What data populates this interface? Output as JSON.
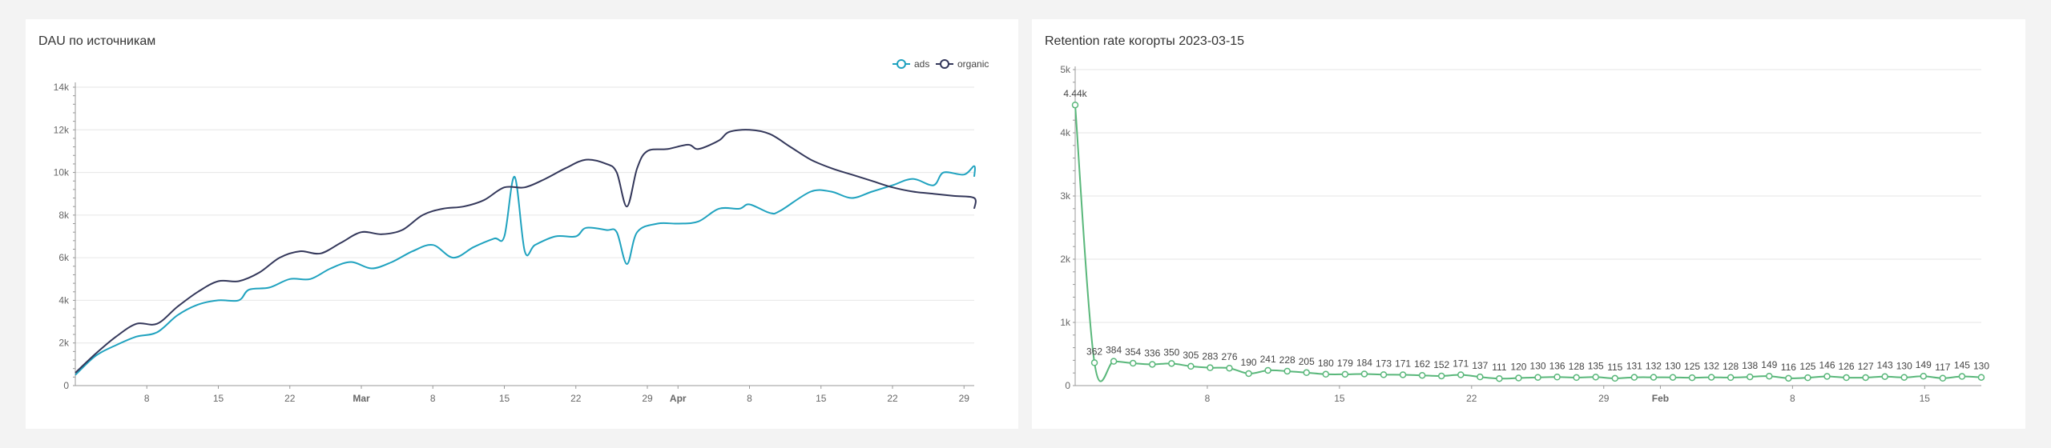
{
  "colors": {
    "ads": "#1fa2bf",
    "organic": "#33375a",
    "retention": "#59b77a",
    "grid": "#e6e6e6",
    "axis": "#999999"
  },
  "left": {
    "title": "DAU по источникам",
    "legend": [
      "ads",
      "organic"
    ],
    "chart_data": {
      "type": "line",
      "title": "DAU по источникам",
      "xlabel": "",
      "ylabel": "",
      "ylim": [
        0,
        14000
      ],
      "y_ticks": [
        "0",
        "2k",
        "4k",
        "6k",
        "8k",
        "10k",
        "12k",
        "14k"
      ],
      "x_ticks": [
        "8",
        "15",
        "22",
        "Mar",
        "8",
        "15",
        "22",
        "29",
        "Apr",
        "8",
        "15",
        "22",
        "29"
      ],
      "x_start": "2023-02-01",
      "x_end": "2023-04-30",
      "legend_position": "top-right",
      "grid": true,
      "series": [
        {
          "name": "ads",
          "points": [
            [
              "2023-02-01",
              500
            ],
            [
              "2023-02-03",
              1400
            ],
            [
              "2023-02-05",
              1900
            ],
            [
              "2023-02-07",
              2300
            ],
            [
              "2023-02-09",
              2500
            ],
            [
              "2023-02-11",
              3300
            ],
            [
              "2023-02-13",
              3800
            ],
            [
              "2023-02-15",
              4000
            ],
            [
              "2023-02-17",
              4000
            ],
            [
              "2023-02-18",
              4500
            ],
            [
              "2023-02-20",
              4600
            ],
            [
              "2023-02-22",
              5000
            ],
            [
              "2023-02-24",
              5000
            ],
            [
              "2023-02-26",
              5500
            ],
            [
              "2023-02-28",
              5800
            ],
            [
              "2023-03-02",
              5500
            ],
            [
              "2023-03-04",
              5800
            ],
            [
              "2023-03-06",
              6300
            ],
            [
              "2023-03-08",
              6600
            ],
            [
              "2023-03-10",
              6000
            ],
            [
              "2023-03-12",
              6500
            ],
            [
              "2023-03-14",
              6900
            ],
            [
              "2023-03-15",
              7000
            ],
            [
              "2023-03-16",
              9800
            ],
            [
              "2023-03-17",
              6300
            ],
            [
              "2023-03-18",
              6600
            ],
            [
              "2023-03-20",
              7000
            ],
            [
              "2023-03-22",
              7000
            ],
            [
              "2023-03-23",
              7400
            ],
            [
              "2023-03-25",
              7300
            ],
            [
              "2023-03-26",
              7200
            ],
            [
              "2023-03-27",
              5700
            ],
            [
              "2023-03-28",
              7200
            ],
            [
              "2023-03-30",
              7600
            ],
            [
              "2023-04-01",
              7600
            ],
            [
              "2023-04-03",
              7700
            ],
            [
              "2023-04-05",
              8300
            ],
            [
              "2023-04-07",
              8300
            ],
            [
              "2023-04-08",
              8500
            ],
            [
              "2023-04-10",
              8100
            ],
            [
              "2023-04-11",
              8200
            ],
            [
              "2023-04-14",
              9100
            ],
            [
              "2023-04-16",
              9100
            ],
            [
              "2023-04-18",
              8800
            ],
            [
              "2023-04-20",
              9100
            ],
            [
              "2023-04-22",
              9400
            ],
            [
              "2023-04-24",
              9700
            ],
            [
              "2023-04-26",
              9400
            ],
            [
              "2023-04-27",
              10000
            ],
            [
              "2023-04-29",
              9900
            ],
            [
              "2023-04-30",
              10300
            ],
            [
              "2023-05-01",
              9800
            ]
          ]
        },
        {
          "name": "organic",
          "points": [
            [
              "2023-02-01",
              600
            ],
            [
              "2023-02-03",
              1500
            ],
            [
              "2023-02-05",
              2300
            ],
            [
              "2023-02-07",
              2900
            ],
            [
              "2023-02-09",
              2900
            ],
            [
              "2023-02-11",
              3700
            ],
            [
              "2023-02-13",
              4400
            ],
            [
              "2023-02-15",
              4900
            ],
            [
              "2023-02-17",
              4900
            ],
            [
              "2023-02-19",
              5300
            ],
            [
              "2023-02-21",
              6000
            ],
            [
              "2023-02-23",
              6300
            ],
            [
              "2023-02-25",
              6200
            ],
            [
              "2023-02-27",
              6700
            ],
            [
              "2023-03-01",
              7200
            ],
            [
              "2023-03-03",
              7100
            ],
            [
              "2023-03-05",
              7300
            ],
            [
              "2023-03-07",
              8000
            ],
            [
              "2023-03-09",
              8300
            ],
            [
              "2023-03-11",
              8400
            ],
            [
              "2023-03-13",
              8700
            ],
            [
              "2023-03-15",
              9300
            ],
            [
              "2023-03-17",
              9300
            ],
            [
              "2023-03-19",
              9700
            ],
            [
              "2023-03-21",
              10200
            ],
            [
              "2023-03-23",
              10600
            ],
            [
              "2023-03-25",
              10400
            ],
            [
              "2023-03-26",
              10000
            ],
            [
              "2023-03-27",
              8400
            ],
            [
              "2023-03-28",
              10200
            ],
            [
              "2023-03-29",
              11000
            ],
            [
              "2023-03-31",
              11100
            ],
            [
              "2023-04-02",
              11300
            ],
            [
              "2023-04-03",
              11100
            ],
            [
              "2023-04-05",
              11500
            ],
            [
              "2023-04-06",
              11900
            ],
            [
              "2023-04-08",
              12000
            ],
            [
              "2023-04-10",
              11800
            ],
            [
              "2023-04-12",
              11200
            ],
            [
              "2023-04-14",
              10600
            ],
            [
              "2023-04-16",
              10200
            ],
            [
              "2023-04-18",
              9900
            ],
            [
              "2023-04-20",
              9600
            ],
            [
              "2023-04-22",
              9300
            ],
            [
              "2023-04-24",
              9100
            ],
            [
              "2023-04-26",
              9000
            ],
            [
              "2023-04-28",
              8900
            ],
            [
              "2023-04-30",
              8800
            ],
            [
              "2023-05-01",
              8300
            ]
          ]
        }
      ]
    }
  },
  "right": {
    "title": "Retention rate когорты 2023-03-15",
    "chart_data": {
      "type": "line",
      "title": "Retention rate когорты 2023-03-15",
      "xlabel": "",
      "ylabel": "",
      "ylim": [
        0,
        5000
      ],
      "y_ticks": [
        "0",
        "1k",
        "2k",
        "3k",
        "4k",
        "5k"
      ],
      "x_ticks": [
        "8",
        "15",
        "22",
        "29",
        "Feb",
        "8",
        "15"
      ],
      "x_start": "2023-01-01",
      "x_end": "2023-02-18",
      "grid": true,
      "series": [
        {
          "name": "retention",
          "values": [
            4440,
            362,
            384,
            354,
            336,
            350,
            305,
            283,
            276,
            190,
            241,
            228,
            205,
            180,
            179,
            184,
            173,
            171,
            162,
            152,
            171,
            137,
            111,
            120,
            130,
            136,
            128,
            135,
            115,
            131,
            132,
            130,
            125,
            132,
            128,
            138,
            149,
            116,
            125,
            146,
            126,
            127,
            143,
            130,
            149,
            117,
            145,
            130
          ],
          "labels": [
            "4.44k",
            "362",
            "384",
            "354",
            "336",
            "350",
            "305",
            "283",
            "276",
            "190",
            "241",
            "228",
            "205",
            "180",
            "179",
            "184",
            "173",
            "171",
            "162",
            "152",
            "171",
            "137",
            "111",
            "120",
            "130",
            "136",
            "128",
            "135",
            "115",
            "131",
            "132",
            "130",
            "125",
            "132",
            "128",
            "138",
            "149",
            "116",
            "125",
            "146",
            "126",
            "127",
            "143",
            "130",
            "149",
            "117",
            "145",
            "130"
          ]
        }
      ]
    }
  }
}
